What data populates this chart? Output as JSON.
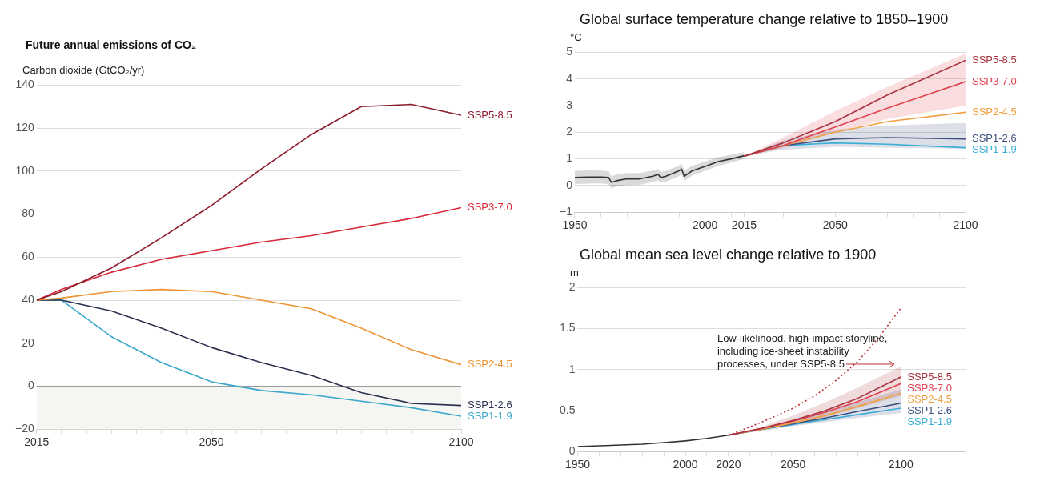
{
  "chart_data": [
    {
      "type": "line",
      "title": "Future annual emissions of CO₂",
      "ylabel": "Carbon dioxide (GtCO₂/yr)",
      "x": [
        2015,
        2020,
        2030,
        2040,
        2050,
        2060,
        2070,
        2080,
        2090,
        2100
      ],
      "series": [
        {
          "name": "SSP5-8.5",
          "color": "#8b1a2b",
          "values": [
            40,
            44,
            55,
            69,
            84,
            101,
            117,
            130,
            131,
            126
          ]
        },
        {
          "name": "SSP3-7.0",
          "color": "#d6293a",
          "values": [
            40,
            45,
            53,
            59,
            63,
            67,
            70,
            74,
            78,
            83
          ]
        },
        {
          "name": "SSP2-4.5",
          "color": "#ee9432",
          "values": [
            40,
            41,
            44,
            45,
            44,
            40,
            36,
            27,
            17,
            10
          ]
        },
        {
          "name": "SSP1-2.6",
          "color": "#2a3050",
          "values": [
            40,
            40,
            35,
            27,
            18,
            11,
            5,
            -3,
            -8,
            -9
          ]
        },
        {
          "name": "SSP1-1.9",
          "color": "#3aa8cc",
          "values": [
            40,
            40,
            23,
            11,
            2,
            -2,
            -4,
            -7,
            -10,
            -14
          ]
        }
      ],
      "xlim": [
        2015,
        2100
      ],
      "xticks": [
        2015,
        {
          "value": 2020,
          "label": null
        },
        {
          "value": 2025,
          "label": null
        },
        {
          "value": 2030,
          "label": null
        },
        {
          "value": 2035,
          "label": null
        },
        {
          "value": 2040,
          "label": null
        },
        {
          "value": 2045,
          "label": null
        },
        2050,
        {
          "value": 2055,
          "label": null
        },
        {
          "value": 2060,
          "label": null
        },
        {
          "value": 2065,
          "label": null
        },
        {
          "value": 2070,
          "label": null
        },
        {
          "value": 2075,
          "label": null
        },
        {
          "value": 2080,
          "label": null
        },
        {
          "value": 2085,
          "label": null
        },
        {
          "value": 2090,
          "label": null
        },
        {
          "value": 2095,
          "label": null
        },
        2100
      ],
      "ylim": [
        -20,
        140
      ],
      "yticks": [
        {
          "value": -20,
          "label": "−20"
        },
        0,
        20,
        40,
        60,
        80,
        100,
        120,
        140
      ],
      "bands": [
        {
          "axis": "y",
          "from": -20,
          "to": 0,
          "color": "#f5f5f2"
        }
      ],
      "ref_lines": [
        {
          "axis": "y",
          "value": 0,
          "color": "#9a9a9a"
        }
      ],
      "grid": "y",
      "legend": false,
      "marker": "none",
      "line_style": "solid"
    },
    {
      "type": "line",
      "title": "Global surface temperature change relative to 1850–1900",
      "ylabel": "°C",
      "series": [
        {
          "color": "#333333",
          "x": [
            1950,
            1955,
            1960,
            1963,
            1964,
            1966,
            1970,
            1975,
            1980,
            1982,
            1983,
            1985,
            1990,
            1991,
            1992,
            1995,
            2000,
            2005,
            2010,
            2015
          ],
          "values": [
            0.3,
            0.32,
            0.32,
            0.3,
            0.12,
            0.18,
            0.25,
            0.25,
            0.35,
            0.42,
            0.3,
            0.35,
            0.55,
            0.62,
            0.35,
            0.55,
            0.72,
            0.9,
            1.0,
            1.12
          ],
          "lower": [
            0.05,
            0.07,
            0.08,
            0.06,
            -0.1,
            -0.05,
            0.02,
            0.03,
            0.13,
            0.2,
            0.1,
            0.15,
            0.35,
            0.42,
            0.17,
            0.37,
            0.55,
            0.74,
            0.86,
            1.0
          ],
          "upper": [
            0.55,
            0.57,
            0.56,
            0.54,
            0.35,
            0.4,
            0.47,
            0.47,
            0.57,
            0.63,
            0.5,
            0.55,
            0.75,
            0.82,
            0.55,
            0.74,
            0.9,
            1.06,
            1.15,
            1.25
          ]
        },
        {
          "name": "SSP5-8.5",
          "color": "#a8323e",
          "x": [
            2015,
            2030,
            2050,
            2070,
            2100
          ],
          "values": [
            1.1,
            1.6,
            2.4,
            3.4,
            4.7
          ]
        },
        {
          "name": "SSP3-7.0",
          "color": "#e0404f",
          "x": [
            2015,
            2030,
            2050,
            2070,
            2100
          ],
          "values": [
            1.1,
            1.5,
            2.2,
            2.9,
            3.9
          ],
          "lower": [
            1.1,
            1.4,
            2.0,
            2.5,
            3.0
          ],
          "upper": [
            1.1,
            1.8,
            2.8,
            3.7,
            4.95
          ]
        },
        {
          "name": "SSP2-4.5",
          "color": "#f0a040",
          "x": [
            2015,
            2030,
            2050,
            2070,
            2100
          ],
          "values": [
            1.1,
            1.5,
            2.0,
            2.4,
            2.75
          ]
        },
        {
          "name": "SSP1-2.6",
          "color": "#3c4f7a",
          "x": [
            2015,
            2030,
            2050,
            2070,
            2100
          ],
          "values": [
            1.1,
            1.5,
            1.75,
            1.8,
            1.75
          ],
          "lower": [
            1.1,
            1.35,
            1.45,
            1.42,
            1.38
          ],
          "upper": [
            1.1,
            1.7,
            2.1,
            2.25,
            2.35
          ]
        },
        {
          "name": "SSP1-1.9",
          "color": "#3aaed8",
          "x": [
            2015,
            2030,
            2050,
            2070,
            2100
          ],
          "values": [
            1.1,
            1.5,
            1.6,
            1.55,
            1.42
          ]
        }
      ],
      "xlim": [
        1950,
        2100
      ],
      "xticks": [
        1950,
        {
          "value": 1960,
          "label": null
        },
        {
          "value": 1970,
          "label": null
        },
        {
          "value": 1980,
          "label": null
        },
        {
          "value": 1990,
          "label": null
        },
        2000,
        {
          "value": 2010,
          "label": null
        },
        2015,
        {
          "value": 2020,
          "label": null
        },
        {
          "value": 2030,
          "label": null
        },
        {
          "value": 2040,
          "label": null
        },
        2050,
        {
          "value": 2060,
          "label": null
        },
        {
          "value": 2070,
          "label": null
        },
        {
          "value": 2080,
          "label": null
        },
        {
          "value": 2090,
          "label": null
        },
        2100
      ],
      "ylim": [
        -1,
        5
      ],
      "yticks": [
        {
          "value": -1,
          "label": "−1"
        },
        0,
        1,
        2,
        3,
        4,
        5
      ],
      "grid": "y",
      "legend": false,
      "marker": "none",
      "line_style": "solid"
    },
    {
      "type": "line",
      "title": "Global mean sea level change relative to 1900",
      "ylabel": "m",
      "series": [
        {
          "color": "#333333",
          "x": [
            1950,
            1960,
            1970,
            1980,
            1990,
            2000,
            2010,
            2020
          ],
          "values": [
            0.06,
            0.07,
            0.08,
            0.09,
            0.11,
            0.13,
            0.16,
            0.2
          ]
        },
        {
          "name": "SSP5-8.5",
          "color": "#a8323e",
          "x": [
            2020,
            2035,
            2050,
            2065,
            2080,
            2100
          ],
          "values": [
            0.2,
            0.28,
            0.38,
            0.5,
            0.65,
            0.91
          ],
          "lower": [
            0.2,
            0.26,
            0.33,
            0.42,
            0.53,
            0.68
          ],
          "upper": [
            0.2,
            0.3,
            0.44,
            0.6,
            0.78,
            1.04
          ]
        },
        {
          "name": "SSP3-7.0",
          "color": "#e0404f",
          "x": [
            2020,
            2035,
            2050,
            2065,
            2080,
            2100
          ],
          "values": [
            0.2,
            0.28,
            0.37,
            0.48,
            0.61,
            0.83
          ]
        },
        {
          "name": "SSP2-4.5",
          "color": "#f0a040",
          "x": [
            2020,
            2035,
            2050,
            2065,
            2080,
            2100
          ],
          "values": [
            0.2,
            0.27,
            0.35,
            0.44,
            0.55,
            0.71
          ]
        },
        {
          "name": "SSP1-2.6",
          "color": "#3c4f7a",
          "x": [
            2020,
            2035,
            2050,
            2065,
            2080,
            2100
          ],
          "values": [
            0.2,
            0.27,
            0.34,
            0.41,
            0.49,
            0.59
          ],
          "lower": [
            0.2,
            0.25,
            0.31,
            0.36,
            0.41,
            0.47
          ],
          "upper": [
            0.2,
            0.29,
            0.38,
            0.49,
            0.6,
            0.76
          ]
        },
        {
          "name": "SSP1-1.9",
          "color": "#3aaed8",
          "x": [
            2020,
            2035,
            2050,
            2065,
            2080,
            2100
          ],
          "values": [
            0.2,
            0.27,
            0.33,
            0.39,
            0.45,
            0.53
          ]
        },
        {
          "color": "#b83236",
          "line_style": "dotted",
          "x": [
            2020,
            2030,
            2040,
            2050,
            2060,
            2070,
            2080,
            2090,
            2100
          ],
          "values": [
            0.2,
            0.3,
            0.41,
            0.53,
            0.68,
            0.87,
            1.1,
            1.4,
            1.75
          ]
        }
      ],
      "annotations": [
        "Low-likelihood, high-impact storyline, including ice-sheet instability processes, under SSP5-8.5"
      ],
      "xlim": [
        1950,
        2130
      ],
      "xticks": [
        1950,
        {
          "value": 1960,
          "label": null
        },
        {
          "value": 1970,
          "label": null
        },
        {
          "value": 1980,
          "label": null
        },
        {
          "value": 1990,
          "label": null
        },
        2000,
        {
          "value": 2010,
          "label": null
        },
        2020,
        {
          "value": 2030,
          "label": null
        },
        {
          "value": 2040,
          "label": null
        },
        2050,
        {
          "value": 2060,
          "label": null
        },
        {
          "value": 2070,
          "label": null
        },
        {
          "value": 2080,
          "label": null
        },
        {
          "value": 2090,
          "label": null
        },
        2100
      ],
      "ylim": [
        0,
        2
      ],
      "yticks": [
        0,
        0.5,
        1,
        1.5,
        2
      ],
      "grid": "y",
      "legend": false,
      "marker": "none",
      "line_style": "solid"
    }
  ]
}
